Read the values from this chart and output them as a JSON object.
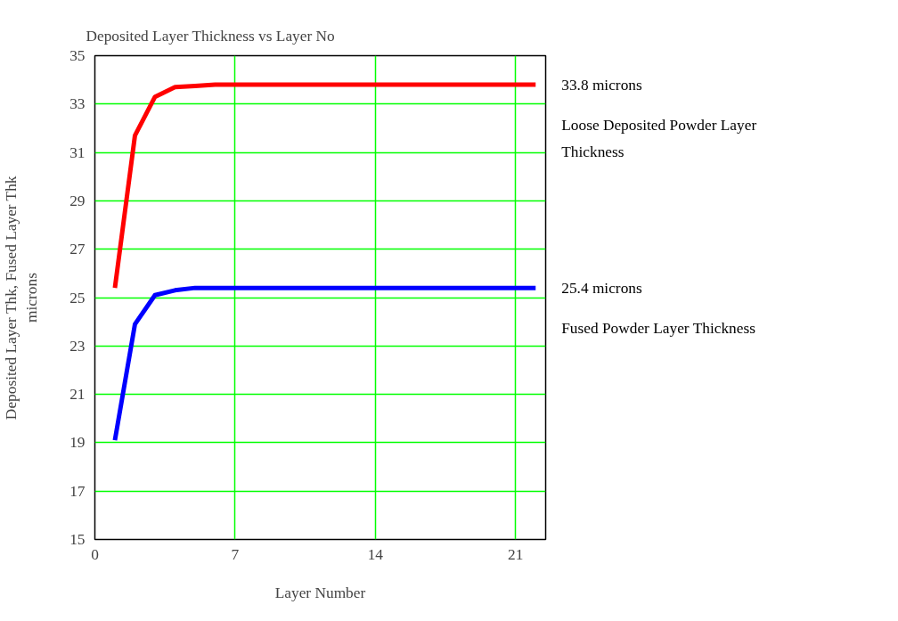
{
  "chart_data": {
    "type": "line",
    "title": "Deposited Layer Thickness vs Layer No",
    "xlabel": "Layer Number",
    "ylabel": "Deposited Layer Thk, Fused Layer Thk\nmicrons",
    "x": [
      1,
      2,
      3,
      4,
      5,
      6,
      7,
      8,
      9,
      10,
      11,
      12,
      13,
      14,
      15,
      16,
      17,
      18,
      19,
      20,
      21,
      22
    ],
    "series": [
      {
        "name": "Loose Deposited Powder Layer Thickness",
        "color": "#ff0000",
        "values": [
          25.4,
          31.7,
          33.3,
          33.7,
          33.75,
          33.8,
          33.8,
          33.8,
          33.8,
          33.8,
          33.8,
          33.8,
          33.8,
          33.8,
          33.8,
          33.8,
          33.8,
          33.8,
          33.8,
          33.8,
          33.8,
          33.8
        ]
      },
      {
        "name": "Fused Powder Layer Thickness",
        "color": "#0000ff",
        "values": [
          19.1,
          23.9,
          25.1,
          25.3,
          25.4,
          25.4,
          25.4,
          25.4,
          25.4,
          25.4,
          25.4,
          25.4,
          25.4,
          25.4,
          25.4,
          25.4,
          25.4,
          25.4,
          25.4,
          25.4,
          25.4,
          25.4
        ]
      }
    ],
    "annotations": [
      "33.8 microns",
      "25.4 microns"
    ],
    "xlim": [
      0,
      22.5
    ],
    "xticks": [
      0,
      7,
      14,
      21
    ],
    "ylim": [
      15,
      35
    ],
    "yticks": [
      15,
      17,
      19,
      21,
      23,
      25,
      27,
      29,
      31,
      33,
      35
    ],
    "grid": true,
    "marker": "none",
    "line_style": "solid"
  }
}
